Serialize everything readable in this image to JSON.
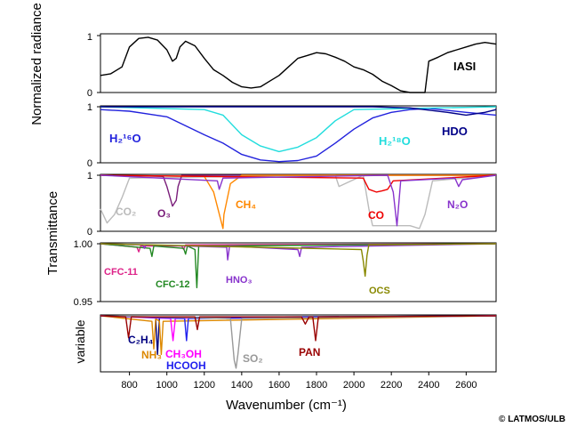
{
  "figure": {
    "credit": "© LATMOS/ULB"
  },
  "chart_data": {
    "type": "line",
    "x_axis": {
      "label": "Wavenumber (cm⁻¹)",
      "range": [
        645,
        2760
      ],
      "ticks": [
        800,
        1000,
        1200,
        1400,
        1600,
        1800,
        2000,
        2200,
        2400,
        2600
      ]
    },
    "ylabel_panel1": "Normalized radiance",
    "ylabel_transmittance": "Transmittance",
    "ylabel_panel5": "variable",
    "panels": [
      {
        "id": "radiance",
        "ylim": [
          0,
          1
        ],
        "yticks": [
          "0",
          "1"
        ],
        "series": [
          {
            "name": "IASI",
            "color": "#000000",
            "x": [
              645,
              700,
              760,
              800,
              850,
              900,
              950,
              1000,
              1030,
              1050,
              1070,
              1100,
              1150,
              1200,
              1250,
              1300,
              1350,
              1400,
              1450,
              1500,
              1550,
              1600,
              1650,
              1700,
              1750,
              1800,
              1850,
              1900,
              1950,
              2000,
              2050,
              2100,
              2150,
              2200,
              2250,
              2300,
              2350,
              2380,
              2400,
              2450,
              2500,
              2550,
              2600,
              2650,
              2700,
              2760
            ],
            "y": [
              0.3,
              0.33,
              0.45,
              0.8,
              0.95,
              0.97,
              0.92,
              0.75,
              0.55,
              0.6,
              0.8,
              0.9,
              0.82,
              0.6,
              0.4,
              0.3,
              0.18,
              0.1,
              0.08,
              0.1,
              0.2,
              0.3,
              0.45,
              0.6,
              0.65,
              0.7,
              0.68,
              0.62,
              0.55,
              0.45,
              0.4,
              0.32,
              0.2,
              0.12,
              0.03,
              0.0,
              0.0,
              0.0,
              0.55,
              0.62,
              0.7,
              0.75,
              0.8,
              0.85,
              0.88,
              0.85
            ]
          }
        ]
      },
      {
        "id": "water",
        "ylim": [
          0,
          1
        ],
        "yticks": [
          "0",
          "1"
        ],
        "series": [
          {
            "name": "H₂¹⁶O",
            "color": "#2222dd",
            "x": [
              645,
              800,
              1000,
              1200,
              1300,
              1400,
              1500,
              1600,
              1700,
              1800,
              1900,
              2000,
              2100,
              2200,
              2300,
              2400,
              2600,
              2760
            ],
            "y": [
              0.95,
              0.92,
              0.82,
              0.5,
              0.35,
              0.15,
              0.05,
              0.02,
              0.04,
              0.12,
              0.35,
              0.6,
              0.8,
              0.9,
              0.95,
              0.97,
              0.9,
              0.85
            ]
          },
          {
            "name": "H₂¹⁸O",
            "color": "#22dddd",
            "x": [
              645,
              1200,
              1300,
              1400,
              1500,
              1600,
              1700,
              1800,
              1900,
              2000,
              2760
            ],
            "y": [
              1,
              0.95,
              0.85,
              0.5,
              0.3,
              0.2,
              0.28,
              0.45,
              0.75,
              0.95,
              1
            ]
          },
          {
            "name": "HDO",
            "color": "#000088",
            "x": [
              645,
              2100,
              2300,
              2500,
              2600,
              2700,
              2760
            ],
            "y": [
              1,
              1,
              0.98,
              0.9,
              0.85,
              0.9,
              0.95
            ]
          }
        ]
      },
      {
        "id": "major",
        "ylim": [
          0,
          1
        ],
        "yticks": [
          "0",
          "1"
        ],
        "series": [
          {
            "name": "CO₂",
            "color": "#bbbbbb",
            "x": [
              645,
              680,
              720,
              760,
              800,
              1900,
              1920,
              2050,
              2080,
              2100,
              2300,
              2350,
              2380,
              2420,
              2760
            ],
            "y": [
              0.4,
              0.15,
              0.3,
              0.6,
              0.95,
              1,
              0.8,
              1,
              0.4,
              0.1,
              0.1,
              0.05,
              0.3,
              0.9,
              1
            ]
          },
          {
            "name": "O₃",
            "color": "#7a1d7a",
            "x": [
              645,
              980,
              1000,
              1030,
              1050,
              1060,
              1080,
              2760
            ],
            "y": [
              1,
              0.98,
              0.8,
              0.45,
              0.55,
              0.8,
              1,
              1
            ]
          },
          {
            "name": "CH₄",
            "color": "#ff8800",
            "x": [
              645,
              1200,
              1250,
              1300,
              1305,
              1340,
              1400,
              2760
            ],
            "y": [
              1,
              0.98,
              0.7,
              0.05,
              0.3,
              0.85,
              1,
              1
            ]
          },
          {
            "name": "CO",
            "color": "#ee0000",
            "x": [
              645,
              2050,
              2080,
              2120,
              2150,
              2180,
              2210,
              2760
            ],
            "y": [
              1,
              0.95,
              0.75,
              0.7,
              0.72,
              0.75,
              0.9,
              1
            ]
          },
          {
            "name": "N₂O",
            "color": "#8833cc",
            "x": [
              645,
              1270,
              1280,
              1300,
              2180,
              2210,
              2230,
              2250,
              2540,
              2560,
              2580,
              2760
            ],
            "y": [
              1,
              0.9,
              0.75,
              0.95,
              1,
              0.7,
              0.1,
              0.9,
              0.95,
              0.8,
              0.92,
              1
            ]
          }
        ]
      },
      {
        "id": "minor",
        "ylim": [
          0.95,
          1.0
        ],
        "yticks": [
          "0.95",
          "1.00"
        ],
        "series": [
          {
            "name": "CFC-11",
            "color": "#dd2288",
            "x": [
              645,
              840,
              850,
              860,
              1080,
              1090,
              1100,
              2760
            ],
            "y": [
              1,
              0.997,
              0.993,
              0.998,
              0.998,
              0.995,
              0.999,
              1
            ]
          },
          {
            "name": "CFC-12",
            "color": "#228822",
            "x": [
              645,
              910,
              920,
              930,
              1090,
              1100,
              1110,
              1150,
              1160,
              1170,
              2760
            ],
            "y": [
              1,
              0.996,
              0.989,
              0.998,
              0.996,
              0.991,
              0.998,
              0.995,
              0.962,
              0.998,
              1
            ]
          },
          {
            "name": "HNO₃",
            "color": "#8833cc",
            "x": [
              645,
              870,
              880,
              890,
              1320,
              1325,
              1335,
              1700,
              1710,
              1720,
              2760
            ],
            "y": [
              1,
              0.999,
              0.996,
              0.999,
              0.997,
              0.986,
              0.998,
              0.995,
              0.989,
              0.997,
              1
            ]
          },
          {
            "name": "OCS",
            "color": "#888800",
            "x": [
              645,
              2040,
              2050,
              2060,
              2070,
              2080,
              2760
            ],
            "y": [
              1,
              0.995,
              0.985,
              0.972,
              0.99,
              0.999,
              1
            ]
          }
        ]
      },
      {
        "id": "variable",
        "series": [
          {
            "name": "C₂H₄",
            "color": "#000080",
            "x": [
              645,
              940,
              950,
              960,
              2760
            ],
            "y": [
              1,
              0.97,
              0.3,
              0.97,
              1
            ]
          },
          {
            "name": "NH₃",
            "color": "#dd8800",
            "x": [
              645,
              920,
              930,
              940,
              960,
              970,
              980,
              2760
            ],
            "y": [
              1,
              0.9,
              0.4,
              0.95,
              0.9,
              0.3,
              0.9,
              1
            ]
          },
          {
            "name": "CH₃OH",
            "color": "#ff00ff",
            "x": [
              645,
              1020,
              1033,
              1045,
              2760
            ],
            "y": [
              1,
              0.95,
              0.55,
              0.95,
              1
            ]
          },
          {
            "name": "HCOOH",
            "color": "#2222ee",
            "x": [
              645,
              1095,
              1105,
              1115,
              2760
            ],
            "y": [
              1,
              0.95,
              0.55,
              0.95,
              1
            ]
          },
          {
            "name": "SO₂",
            "color": "#999999",
            "x": [
              645,
              1340,
              1360,
              1370,
              1380,
              1400,
              2760
            ],
            "y": [
              1,
              0.95,
              0.2,
              0.05,
              0.3,
              0.95,
              1
            ]
          },
          {
            "name": "PAN",
            "color": "#990000",
            "x": [
              645,
              780,
              795,
              810,
              1150,
              1163,
              1175,
              1720,
              1740,
              1760,
              1780,
              1795,
              1810,
              2760
            ],
            "y": [
              1,
              0.98,
              0.6,
              0.98,
              0.98,
              0.75,
              0.98,
              0.98,
              0.85,
              0.98,
              0.98,
              0.55,
              0.98,
              1
            ]
          }
        ]
      }
    ]
  }
}
